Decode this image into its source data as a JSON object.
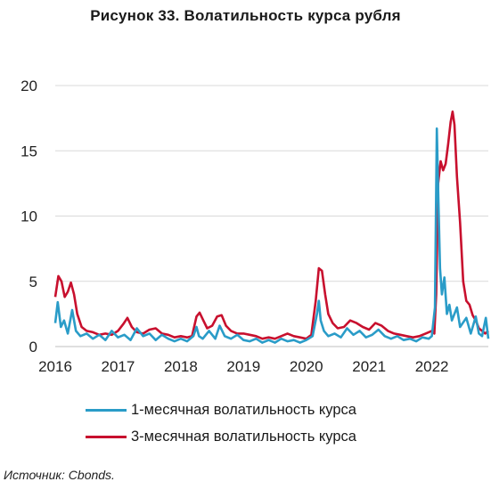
{
  "figure": {
    "title": "Рисунок 33. Волатильность курса рубля",
    "source": "Источник: Cbonds."
  },
  "chart_data": {
    "type": "line",
    "title": "Рисунок 33. Волатильность курса рубля",
    "xlabel": "",
    "ylabel": "",
    "xlim": [
      2016.0,
      2022.9
    ],
    "ylim": [
      0,
      20
    ],
    "x_ticks": [
      "2016",
      "2017",
      "2018",
      "2019",
      "2020",
      "2021",
      "2022"
    ],
    "y_ticks": [
      "0",
      "5",
      "10",
      "15",
      "20"
    ],
    "grid": "horizontal",
    "legend": "bottom",
    "series": [
      {
        "name": "1-месячная волатильность курса",
        "color": "#2a9cc8",
        "points": [
          [
            2016.0,
            1.8
          ],
          [
            2016.04,
            3.4
          ],
          [
            2016.09,
            1.5
          ],
          [
            2016.14,
            2.0
          ],
          [
            2016.2,
            1.0
          ],
          [
            2016.27,
            2.8
          ],
          [
            2016.33,
            1.2
          ],
          [
            2016.4,
            0.8
          ],
          [
            2016.5,
            1.0
          ],
          [
            2016.6,
            0.6
          ],
          [
            2016.7,
            0.9
          ],
          [
            2016.8,
            0.5
          ],
          [
            2016.9,
            1.2
          ],
          [
            2017.0,
            0.7
          ],
          [
            2017.1,
            0.9
          ],
          [
            2017.2,
            0.5
          ],
          [
            2017.3,
            1.4
          ],
          [
            2017.4,
            0.8
          ],
          [
            2017.5,
            1.0
          ],
          [
            2017.6,
            0.5
          ],
          [
            2017.7,
            0.9
          ],
          [
            2017.8,
            0.6
          ],
          [
            2017.9,
            0.4
          ],
          [
            2018.0,
            0.6
          ],
          [
            2018.1,
            0.4
          ],
          [
            2018.2,
            0.8
          ],
          [
            2018.25,
            1.5
          ],
          [
            2018.29,
            0.8
          ],
          [
            2018.35,
            0.6
          ],
          [
            2018.45,
            1.2
          ],
          [
            2018.55,
            0.6
          ],
          [
            2018.62,
            1.6
          ],
          [
            2018.7,
            0.8
          ],
          [
            2018.8,
            0.6
          ],
          [
            2018.9,
            0.9
          ],
          [
            2019.0,
            0.5
          ],
          [
            2019.1,
            0.4
          ],
          [
            2019.2,
            0.6
          ],
          [
            2019.3,
            0.3
          ],
          [
            2019.4,
            0.5
          ],
          [
            2019.5,
            0.3
          ],
          [
            2019.6,
            0.6
          ],
          [
            2019.7,
            0.4
          ],
          [
            2019.8,
            0.5
          ],
          [
            2019.9,
            0.3
          ],
          [
            2020.0,
            0.5
          ],
          [
            2020.1,
            0.8
          ],
          [
            2020.17,
            2.5
          ],
          [
            2020.2,
            3.5
          ],
          [
            2020.23,
            2.0
          ],
          [
            2020.28,
            1.2
          ],
          [
            2020.35,
            0.8
          ],
          [
            2020.45,
            1.0
          ],
          [
            2020.55,
            0.7
          ],
          [
            2020.65,
            1.4
          ],
          [
            2020.75,
            0.9
          ],
          [
            2020.85,
            1.2
          ],
          [
            2020.95,
            0.7
          ],
          [
            2021.05,
            0.9
          ],
          [
            2021.15,
            1.3
          ],
          [
            2021.25,
            0.8
          ],
          [
            2021.35,
            0.6
          ],
          [
            2021.45,
            0.8
          ],
          [
            2021.55,
            0.5
          ],
          [
            2021.65,
            0.6
          ],
          [
            2021.75,
            0.4
          ],
          [
            2021.85,
            0.7
          ],
          [
            2021.95,
            0.6
          ],
          [
            2022.0,
            0.8
          ],
          [
            2022.05,
            3.0
          ],
          [
            2022.08,
            16.7
          ],
          [
            2022.1,
            12.0
          ],
          [
            2022.13,
            6.0
          ],
          [
            2022.16,
            4.0
          ],
          [
            2022.2,
            5.3
          ],
          [
            2022.24,
            2.5
          ],
          [
            2022.28,
            3.2
          ],
          [
            2022.32,
            2.0
          ],
          [
            2022.4,
            3.0
          ],
          [
            2022.45,
            1.5
          ],
          [
            2022.55,
            2.2
          ],
          [
            2022.62,
            1.0
          ],
          [
            2022.7,
            2.3
          ],
          [
            2022.75,
            1.0
          ],
          [
            2022.8,
            0.8
          ],
          [
            2022.86,
            2.2
          ],
          [
            2022.9,
            0.6
          ]
        ]
      },
      {
        "name": "3-месячная волатильность курса",
        "color": "#c8102e",
        "points": [
          [
            2016.0,
            3.8
          ],
          [
            2016.05,
            5.4
          ],
          [
            2016.1,
            5.0
          ],
          [
            2016.15,
            3.8
          ],
          [
            2016.2,
            4.2
          ],
          [
            2016.25,
            4.9
          ],
          [
            2016.3,
            4.0
          ],
          [
            2016.35,
            2.5
          ],
          [
            2016.42,
            1.5
          ],
          [
            2016.5,
            1.2
          ],
          [
            2016.6,
            1.1
          ],
          [
            2016.7,
            0.9
          ],
          [
            2016.8,
            1.0
          ],
          [
            2016.9,
            0.9
          ],
          [
            2017.0,
            1.2
          ],
          [
            2017.08,
            1.7
          ],
          [
            2017.15,
            2.2
          ],
          [
            2017.22,
            1.5
          ],
          [
            2017.3,
            1.1
          ],
          [
            2017.4,
            1.0
          ],
          [
            2017.5,
            1.3
          ],
          [
            2017.6,
            1.4
          ],
          [
            2017.7,
            1.0
          ],
          [
            2017.8,
            0.9
          ],
          [
            2017.9,
            0.7
          ],
          [
            2018.0,
            0.8
          ],
          [
            2018.1,
            0.7
          ],
          [
            2018.18,
            0.8
          ],
          [
            2018.25,
            2.3
          ],
          [
            2018.3,
            2.6
          ],
          [
            2018.36,
            2.0
          ],
          [
            2018.42,
            1.4
          ],
          [
            2018.5,
            1.6
          ],
          [
            2018.58,
            2.3
          ],
          [
            2018.65,
            2.4
          ],
          [
            2018.72,
            1.6
          ],
          [
            2018.8,
            1.2
          ],
          [
            2018.9,
            1.0
          ],
          [
            2019.0,
            1.0
          ],
          [
            2019.1,
            0.9
          ],
          [
            2019.2,
            0.8
          ],
          [
            2019.3,
            0.6
          ],
          [
            2019.4,
            0.7
          ],
          [
            2019.5,
            0.6
          ],
          [
            2019.6,
            0.8
          ],
          [
            2019.7,
            1.0
          ],
          [
            2019.8,
            0.8
          ],
          [
            2019.9,
            0.7
          ],
          [
            2020.0,
            0.6
          ],
          [
            2020.08,
            0.9
          ],
          [
            2020.15,
            3.5
          ],
          [
            2020.2,
            6.0
          ],
          [
            2020.25,
            5.8
          ],
          [
            2020.3,
            4.0
          ],
          [
            2020.35,
            2.5
          ],
          [
            2020.42,
            1.8
          ],
          [
            2020.5,
            1.4
          ],
          [
            2020.6,
            1.5
          ],
          [
            2020.7,
            2.0
          ],
          [
            2020.8,
            1.8
          ],
          [
            2020.9,
            1.5
          ],
          [
            2021.0,
            1.3
          ],
          [
            2021.1,
            1.8
          ],
          [
            2021.2,
            1.6
          ],
          [
            2021.3,
            1.2
          ],
          [
            2021.4,
            1.0
          ],
          [
            2021.5,
            0.9
          ],
          [
            2021.6,
            0.8
          ],
          [
            2021.7,
            0.7
          ],
          [
            2021.8,
            0.8
          ],
          [
            2021.9,
            1.0
          ],
          [
            2022.0,
            1.2
          ],
          [
            2022.04,
            1.0
          ],
          [
            2022.07,
            4.0
          ],
          [
            2022.1,
            12.5
          ],
          [
            2022.14,
            14.2
          ],
          [
            2022.18,
            13.5
          ],
          [
            2022.22,
            14.0
          ],
          [
            2022.26,
            15.5
          ],
          [
            2022.3,
            17.2
          ],
          [
            2022.33,
            18.0
          ],
          [
            2022.36,
            17.0
          ],
          [
            2022.4,
            13.0
          ],
          [
            2022.45,
            9.5
          ],
          [
            2022.5,
            5.0
          ],
          [
            2022.55,
            3.5
          ],
          [
            2022.6,
            3.2
          ],
          [
            2022.65,
            2.4
          ],
          [
            2022.7,
            2.0
          ],
          [
            2022.75,
            1.4
          ],
          [
            2022.8,
            1.2
          ],
          [
            2022.85,
            1.0
          ],
          [
            2022.9,
            1.2
          ]
        ]
      }
    ]
  }
}
